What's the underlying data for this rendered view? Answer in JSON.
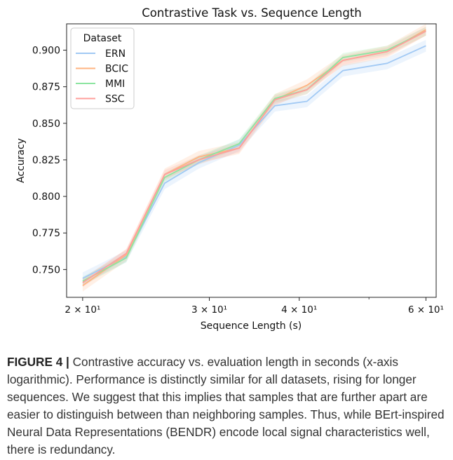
{
  "chart_data": {
    "type": "line",
    "title": "Contrastive Task vs. Sequence Length",
    "xlabel": "Sequence Length (s)",
    "ylabel": "Accuracy",
    "xscale": "log",
    "xlim": [
      19,
      62
    ],
    "ylim": [
      0.731,
      0.918
    ],
    "grid": false,
    "legend": {
      "title": "Dataset",
      "placement": "top-left"
    },
    "x": [
      20,
      23,
      26,
      29,
      33,
      37,
      41,
      46,
      53,
      60
    ],
    "x_ticks": [
      {
        "value": 20,
        "label": "2 × 10¹"
      },
      {
        "value": 30,
        "label": "3 × 10¹"
      },
      {
        "value": 40,
        "label": "4 × 10¹"
      },
      {
        "value": 60,
        "label": "6 × 10¹"
      }
    ],
    "x_minor_ticks": [
      50
    ],
    "y_ticks": [
      {
        "value": 0.75,
        "label": "0.750"
      },
      {
        "value": 0.775,
        "label": "0.775"
      },
      {
        "value": 0.8,
        "label": "0.800"
      },
      {
        "value": 0.825,
        "label": "0.825"
      },
      {
        "value": 0.85,
        "label": "0.850"
      },
      {
        "value": 0.875,
        "label": "0.875"
      },
      {
        "value": 0.9,
        "label": "0.900"
      }
    ],
    "series": [
      {
        "name": "ERN",
        "color": "#a1c9f4",
        "band": 0.004,
        "values": [
          0.744,
          0.759,
          0.809,
          0.823,
          0.835,
          0.862,
          0.865,
          0.886,
          0.891,
          0.903
        ]
      },
      {
        "name": "BCIC",
        "color": "#ffb482",
        "band": 0.004,
        "values": [
          0.739,
          0.76,
          0.815,
          0.827,
          0.833,
          0.866,
          0.876,
          0.893,
          0.899,
          0.914
        ]
      },
      {
        "name": "MMI",
        "color": "#8de5a1",
        "band": 0.003,
        "values": [
          0.742,
          0.758,
          0.813,
          0.825,
          0.836,
          0.867,
          0.873,
          0.895,
          0.9,
          0.913
        ]
      },
      {
        "name": "SSC",
        "color": "#ff9f9b",
        "band": 0.003,
        "values": [
          0.741,
          0.761,
          0.815,
          0.825,
          0.833,
          0.866,
          0.873,
          0.893,
          0.899,
          0.913
        ]
      }
    ]
  },
  "caption": {
    "label": "FIGURE 4 |",
    "text": " Contrastive accuracy vs. evaluation length in seconds (x-axis logarithmic). Performance is distinctly similar for all datasets, rising for longer sequences. We suggest that this implies that samples that are further apart are easier to distinguish between than neighboring samples. Thus, while BErt-inspired Neural Data Representations (BENDR) encode local signal characteristics well, there is redundancy."
  }
}
